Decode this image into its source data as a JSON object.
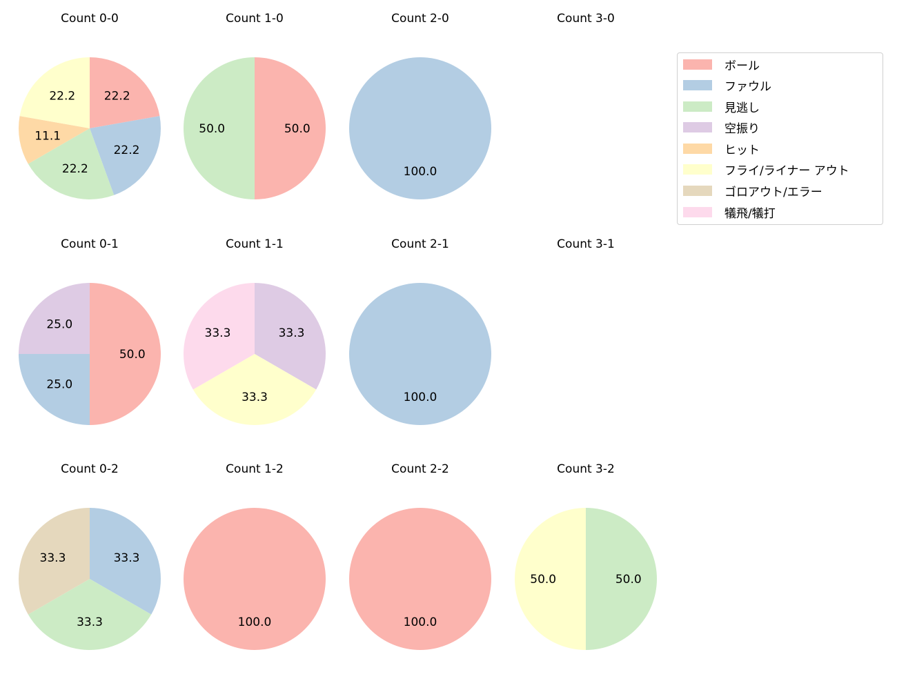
{
  "legend": {
    "items": [
      {
        "label": "ボール",
        "color": "#fbb4ae"
      },
      {
        "label": "ファウル",
        "color": "#b3cde3"
      },
      {
        "label": "見逃し",
        "color": "#ccebc5"
      },
      {
        "label": "空振り",
        "color": "#decbe4"
      },
      {
        "label": "ヒット",
        "color": "#fed9a6"
      },
      {
        "label": "フライ/ライナー アウト",
        "color": "#ffffcc"
      },
      {
        "label": "ゴロアウト/エラー",
        "color": "#e5d8bd"
      },
      {
        "label": "犠飛/犠打",
        "color": "#fddaec"
      }
    ]
  },
  "chart_data": [
    {
      "type": "pie",
      "title": "Count 0-0",
      "labels": [
        "ボール",
        "ファウル",
        "見逃し",
        "ヒット",
        "フライ/ライナー アウト"
      ],
      "values": [
        22.2,
        22.2,
        22.2,
        11.1,
        22.2
      ]
    },
    {
      "type": "pie",
      "title": "Count 1-0",
      "labels": [
        "ボール",
        "見逃し"
      ],
      "values": [
        50.0,
        50.0
      ]
    },
    {
      "type": "pie",
      "title": "Count 2-0",
      "labels": [
        "ファウル"
      ],
      "values": [
        100.0
      ]
    },
    {
      "type": "pie",
      "title": "Count 3-0",
      "labels": [],
      "values": []
    },
    {
      "type": "pie",
      "title": "Count 0-1",
      "labels": [
        "ボール",
        "ファウル",
        "空振り"
      ],
      "values": [
        50.0,
        25.0,
        25.0
      ]
    },
    {
      "type": "pie",
      "title": "Count 1-1",
      "labels": [
        "空振り",
        "フライ/ライナー アウト",
        "犠飛/犠打"
      ],
      "values": [
        33.3,
        33.3,
        33.3
      ]
    },
    {
      "type": "pie",
      "title": "Count 2-1",
      "labels": [
        "ファウル"
      ],
      "values": [
        100.0
      ]
    },
    {
      "type": "pie",
      "title": "Count 3-1",
      "labels": [],
      "values": []
    },
    {
      "type": "pie",
      "title": "Count 0-2",
      "labels": [
        "ファウル",
        "見逃し",
        "ゴロアウト/エラー"
      ],
      "values": [
        33.3,
        33.3,
        33.3
      ]
    },
    {
      "type": "pie",
      "title": "Count 1-2",
      "labels": [
        "ボール"
      ],
      "values": [
        100.0
      ]
    },
    {
      "type": "pie",
      "title": "Count 2-2",
      "labels": [
        "ボール"
      ],
      "values": [
        100.0
      ]
    },
    {
      "type": "pie",
      "title": "Count 3-2",
      "labels": [
        "見逃し",
        "フライ/ライナー アウト"
      ],
      "values": [
        50.0,
        50.0
      ]
    }
  ]
}
